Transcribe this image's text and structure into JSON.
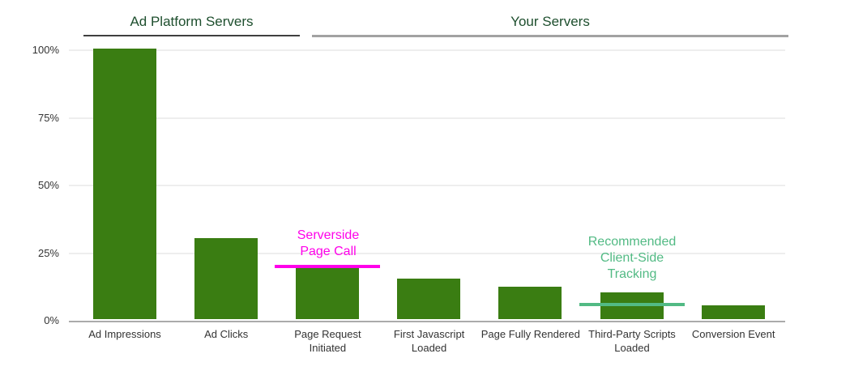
{
  "chart_data": {
    "type": "bar",
    "title": "",
    "categories": [
      "Ad Impressions",
      "Ad Clicks",
      "Page Request Initiated",
      "First Javascript Loaded",
      "Page Fully Rendered",
      "Third-Party Scripts Loaded",
      "Conversion Event"
    ],
    "values": [
      100,
      30,
      20,
      15,
      12,
      10,
      5
    ],
    "xlabel": "",
    "ylabel": "",
    "ylim": [
      0,
      100
    ],
    "yticks": [
      0,
      25,
      50,
      75,
      100
    ],
    "ytick_labels": [
      "0%",
      "25%",
      "50%",
      "75%",
      "100%"
    ],
    "grid": true,
    "legend": "none",
    "bar_color": "#3a7d12"
  },
  "sections": [
    {
      "label": "Ad Platform Servers",
      "underline_color": "#3f3f3f",
      "covers": [
        "Ad Impressions",
        "Ad Clicks"
      ]
    },
    {
      "label": "Your Servers",
      "underline_color": "#a2a2a2",
      "covers": [
        "Page Request Initiated",
        "First Javascript Loaded",
        "Page Fully Rendered",
        "Third-Party Scripts Loaded",
        "Conversion Event"
      ]
    }
  ],
  "annotations": [
    {
      "text": "Serverside\nPage Call",
      "color": "#ff00ea",
      "level_pct": 20,
      "target_category": "Page Request Initiated"
    },
    {
      "text": "Recommended\nClient-Side\nTracking",
      "color": "#52ba84",
      "level_pct": 6,
      "target_category": "Third-Party Scripts Loaded"
    }
  ],
  "colors": {
    "bar": "#3a7d12",
    "section_header_text": "#1e4f2e",
    "axis_label": "#333333",
    "gridline": "#eeeeee",
    "baseline": "#ababab",
    "background": "#ffffff"
  }
}
